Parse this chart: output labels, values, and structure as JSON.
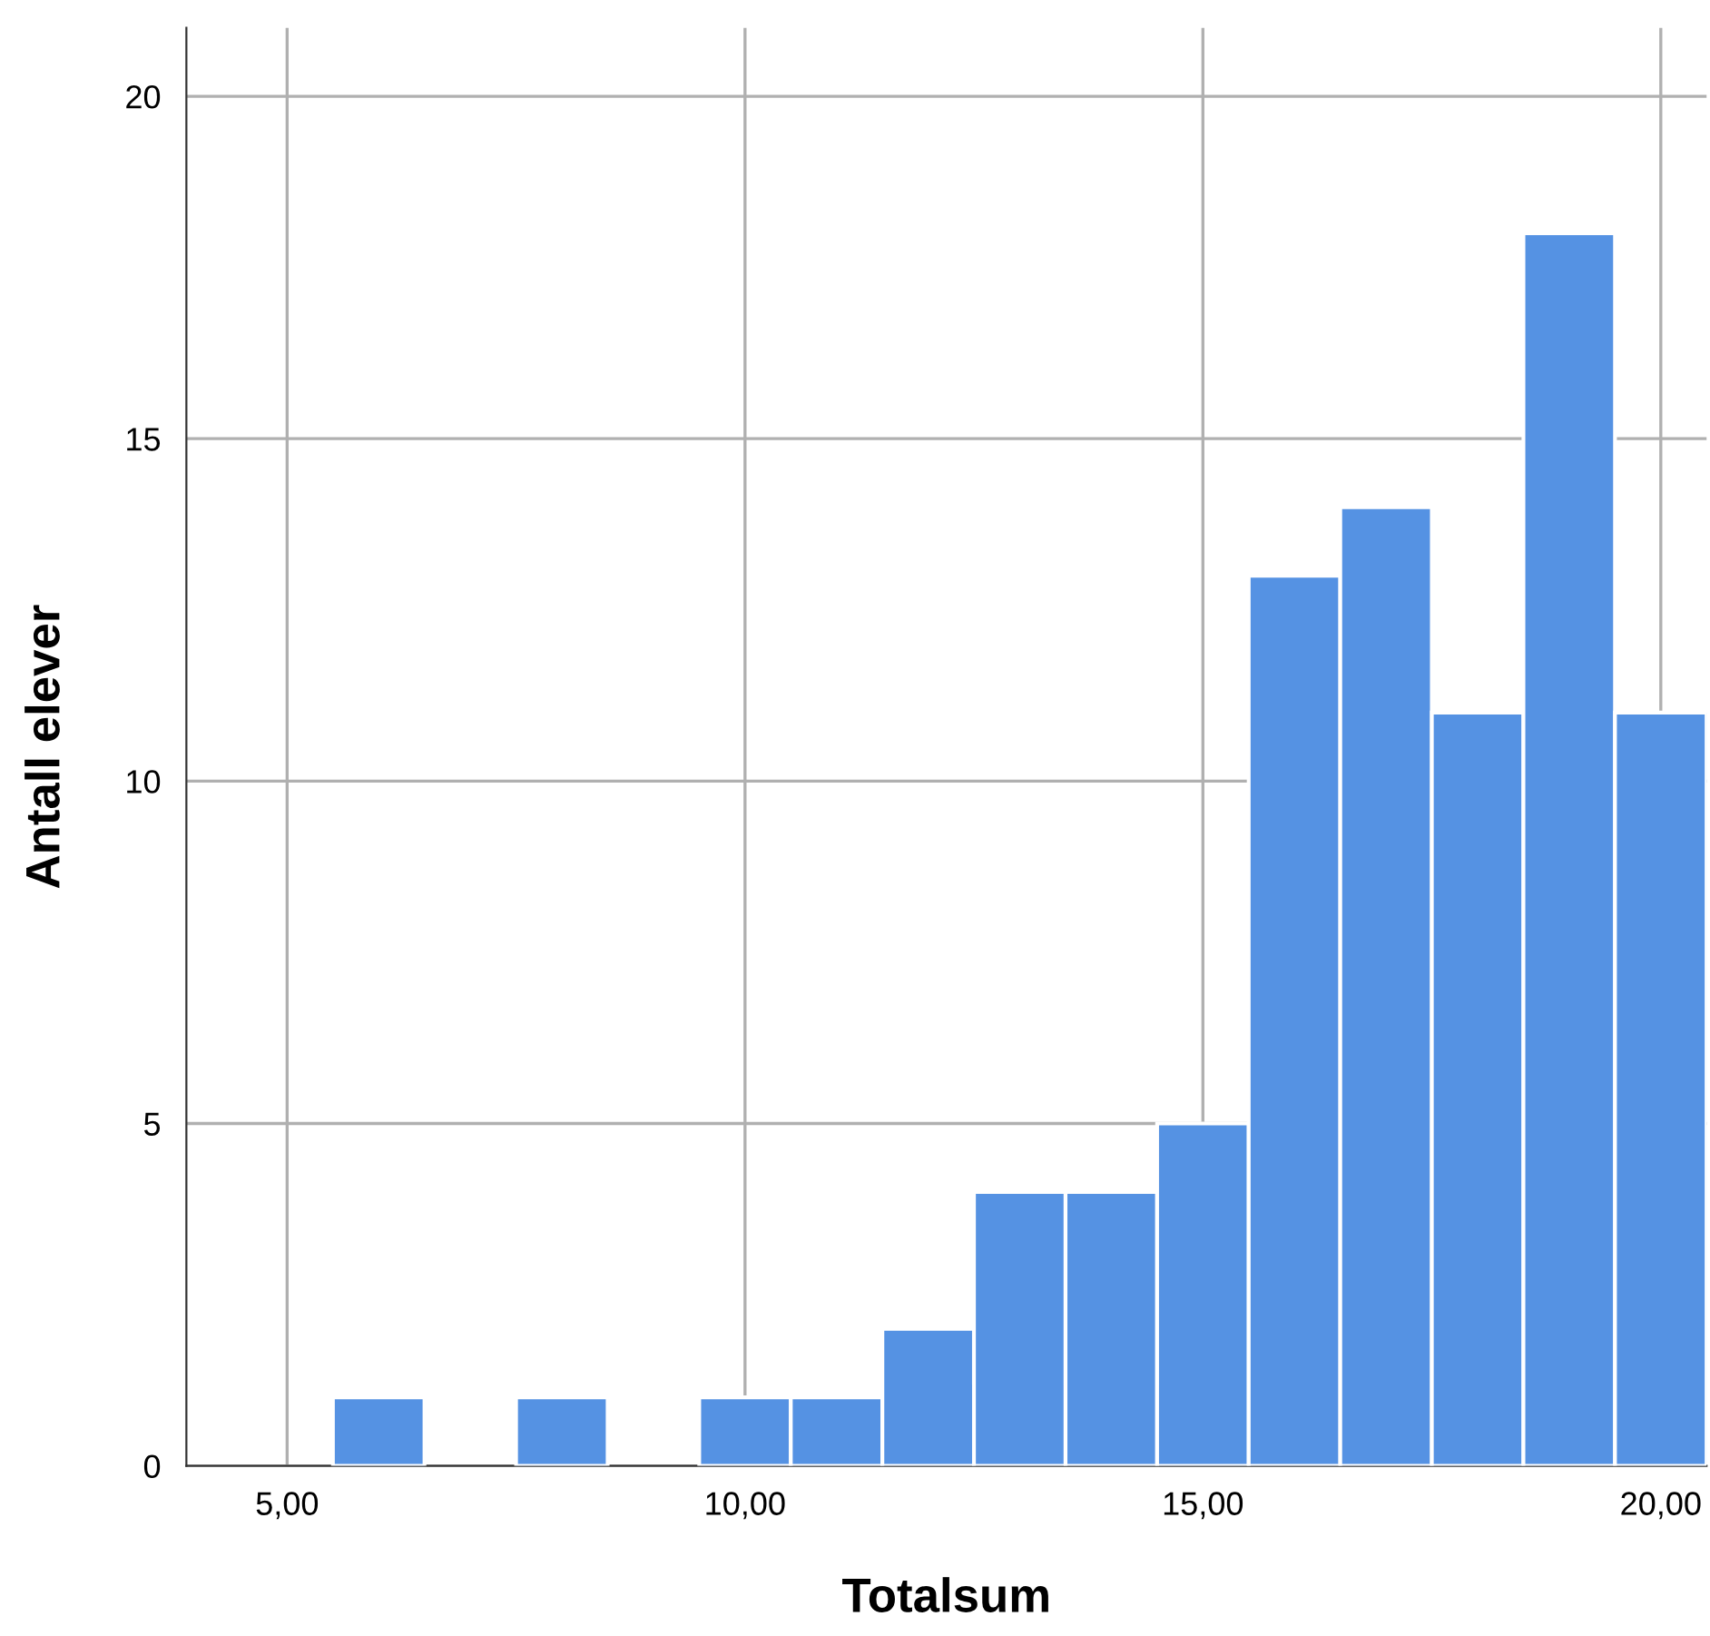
{
  "chart_data": {
    "type": "histogram",
    "xlabel": "Totalsum",
    "ylabel": "Antall elever",
    "bins": [
      5.5,
      6.5,
      7.5,
      8.5,
      9.5,
      10.5,
      11.5,
      12.5,
      13.5,
      14.5,
      15.5,
      16.5,
      17.5,
      18.5,
      19.5,
      20.5
    ],
    "values": [
      1,
      0,
      1,
      0,
      1,
      1,
      2,
      4,
      4,
      5,
      13,
      14,
      11,
      18,
      11
    ],
    "color": "#5592e3",
    "xlim": [
      3.9,
      20.5
    ],
    "ylim": [
      0,
      21
    ],
    "xticks": [
      {
        "value": 5,
        "label": "5,00"
      },
      {
        "value": 10,
        "label": "10,00"
      },
      {
        "value": 15,
        "label": "15,00"
      },
      {
        "value": 20,
        "label": "20,00"
      }
    ],
    "yticks": [
      0,
      5,
      10,
      15,
      20
    ],
    "grid": true
  }
}
